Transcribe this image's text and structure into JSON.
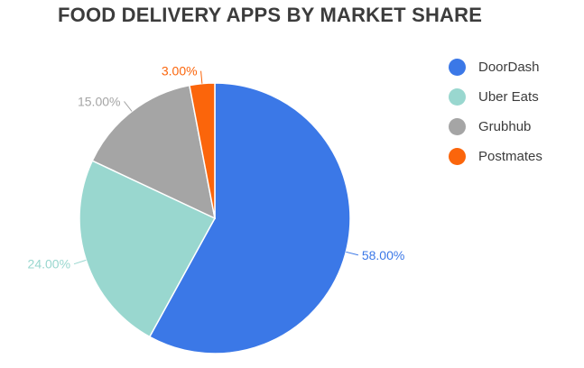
{
  "chart_data": {
    "type": "pie",
    "title": "FOOD DELIVERY APPS BY MARKET SHARE",
    "slices": [
      {
        "name": "DoorDash",
        "value": 58.0,
        "label": "58.00%",
        "color": "#3b78e7"
      },
      {
        "name": "Uber Eats",
        "value": 24.0,
        "label": "24.00%",
        "color": "#99d7cf"
      },
      {
        "name": "Grubhub",
        "value": 15.0,
        "label": "15.00%",
        "color": "#a5a5a5"
      },
      {
        "name": "Postmates",
        "value": 3.0,
        "label": "3.00%",
        "color": "#fb650b"
      }
    ],
    "legend_position": "right"
  }
}
